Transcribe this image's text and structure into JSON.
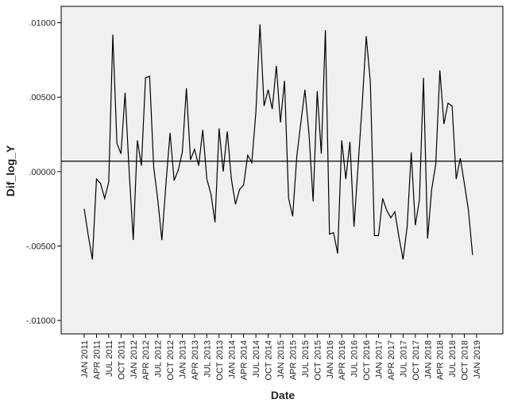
{
  "chart_data": {
    "type": "line",
    "x_label": "Date",
    "y_label": "Dif_log_Y",
    "categories": [
      "JAN 2011",
      null,
      null,
      "APR 2011",
      null,
      null,
      "JUL 2011",
      null,
      null,
      "OCT 2011",
      null,
      null,
      "JAN 2012",
      null,
      null,
      "APR 2012",
      null,
      null,
      "JUL 2012",
      null,
      null,
      "OCT 2012",
      null,
      null,
      "JAN 2013",
      null,
      null,
      "APR 2013",
      null,
      null,
      "JUL 2013",
      null,
      null,
      "OCT 2013",
      null,
      null,
      "JAN 2014",
      null,
      null,
      "APR 2014",
      null,
      null,
      "JUL 2014",
      null,
      null,
      "OCT 2014",
      null,
      null,
      "JAN 2015",
      null,
      null,
      "APR 2015",
      null,
      null,
      "JUL 2015",
      null,
      null,
      "OCT 2015",
      null,
      null,
      "JAN 2016",
      null,
      null,
      "APR 2016",
      null,
      null,
      "JUL 2016",
      null,
      null,
      "OCT 2016",
      null,
      null,
      "JAN 2017",
      null,
      null,
      "APR 2017",
      null,
      null,
      "JUL 2017",
      null,
      null,
      "OCT 2017",
      null,
      null,
      "JAN 2018",
      null,
      null,
      "APR 2018",
      null,
      null,
      "JUL 2018",
      null,
      null,
      "OCT 2018",
      null,
      null,
      "JAN 2019"
    ],
    "values": [
      -0.0025,
      -0.0043,
      -0.0059,
      -0.0005,
      -0.0008,
      -0.0018,
      -0.0007,
      0.0092,
      0.0019,
      0.0012,
      0.0053,
      0.0,
      -0.0046,
      0.0021,
      0.0004,
      0.0063,
      0.0064,
      0.0003,
      -0.0019,
      -0.0046,
      -0.0008,
      0.0026,
      -0.0006,
      0.0001,
      0.0013,
      0.0056,
      0.0008,
      0.0015,
      0.0004,
      0.0028,
      -0.0005,
      -0.0015,
      -0.0034,
      0.0029,
      0.0,
      0.0027,
      -0.0005,
      -0.0022,
      -0.0012,
      -0.0009,
      0.0011,
      0.0006,
      0.004,
      0.0099,
      0.0044,
      0.0055,
      0.0042,
      0.0071,
      0.0033,
      0.0061,
      -0.0018,
      -0.003,
      0.001,
      0.0033,
      0.0055,
      0.0025,
      -0.002,
      0.0054,
      0.0012,
      0.0095,
      -0.0042,
      -0.0041,
      -0.0055,
      0.0021,
      -0.0005,
      0.002,
      -0.0037,
      0.0004,
      0.0045,
      0.0091,
      0.006,
      -0.0043,
      -0.0043,
      -0.0018,
      -0.0026,
      -0.0031,
      -0.0027,
      -0.0044,
      -0.0059,
      -0.0037,
      0.0013,
      -0.0036,
      -0.0019,
      0.0063,
      -0.0045,
      -0.0012,
      0.0005,
      0.0068,
      0.0032,
      0.0046,
      0.0044,
      -0.0005,
      0.0009,
      -0.0008,
      -0.0026,
      -0.0056,
      null
    ],
    "color": "#000000",
    "reference_line": 0.0007,
    "ylim": [
      -0.0109,
      0.0111
    ],
    "yticks": [
      {
        "value": 0.01,
        "label": ".01000"
      },
      {
        "value": 0.005,
        "label": ".00500"
      },
      {
        "value": 0,
        "label": ".00000"
      },
      {
        "value": -0.005,
        "label": "-.00500"
      },
      {
        "value": -0.01,
        "label": "-.01000"
      }
    ],
    "background": "#f0f0f0"
  }
}
